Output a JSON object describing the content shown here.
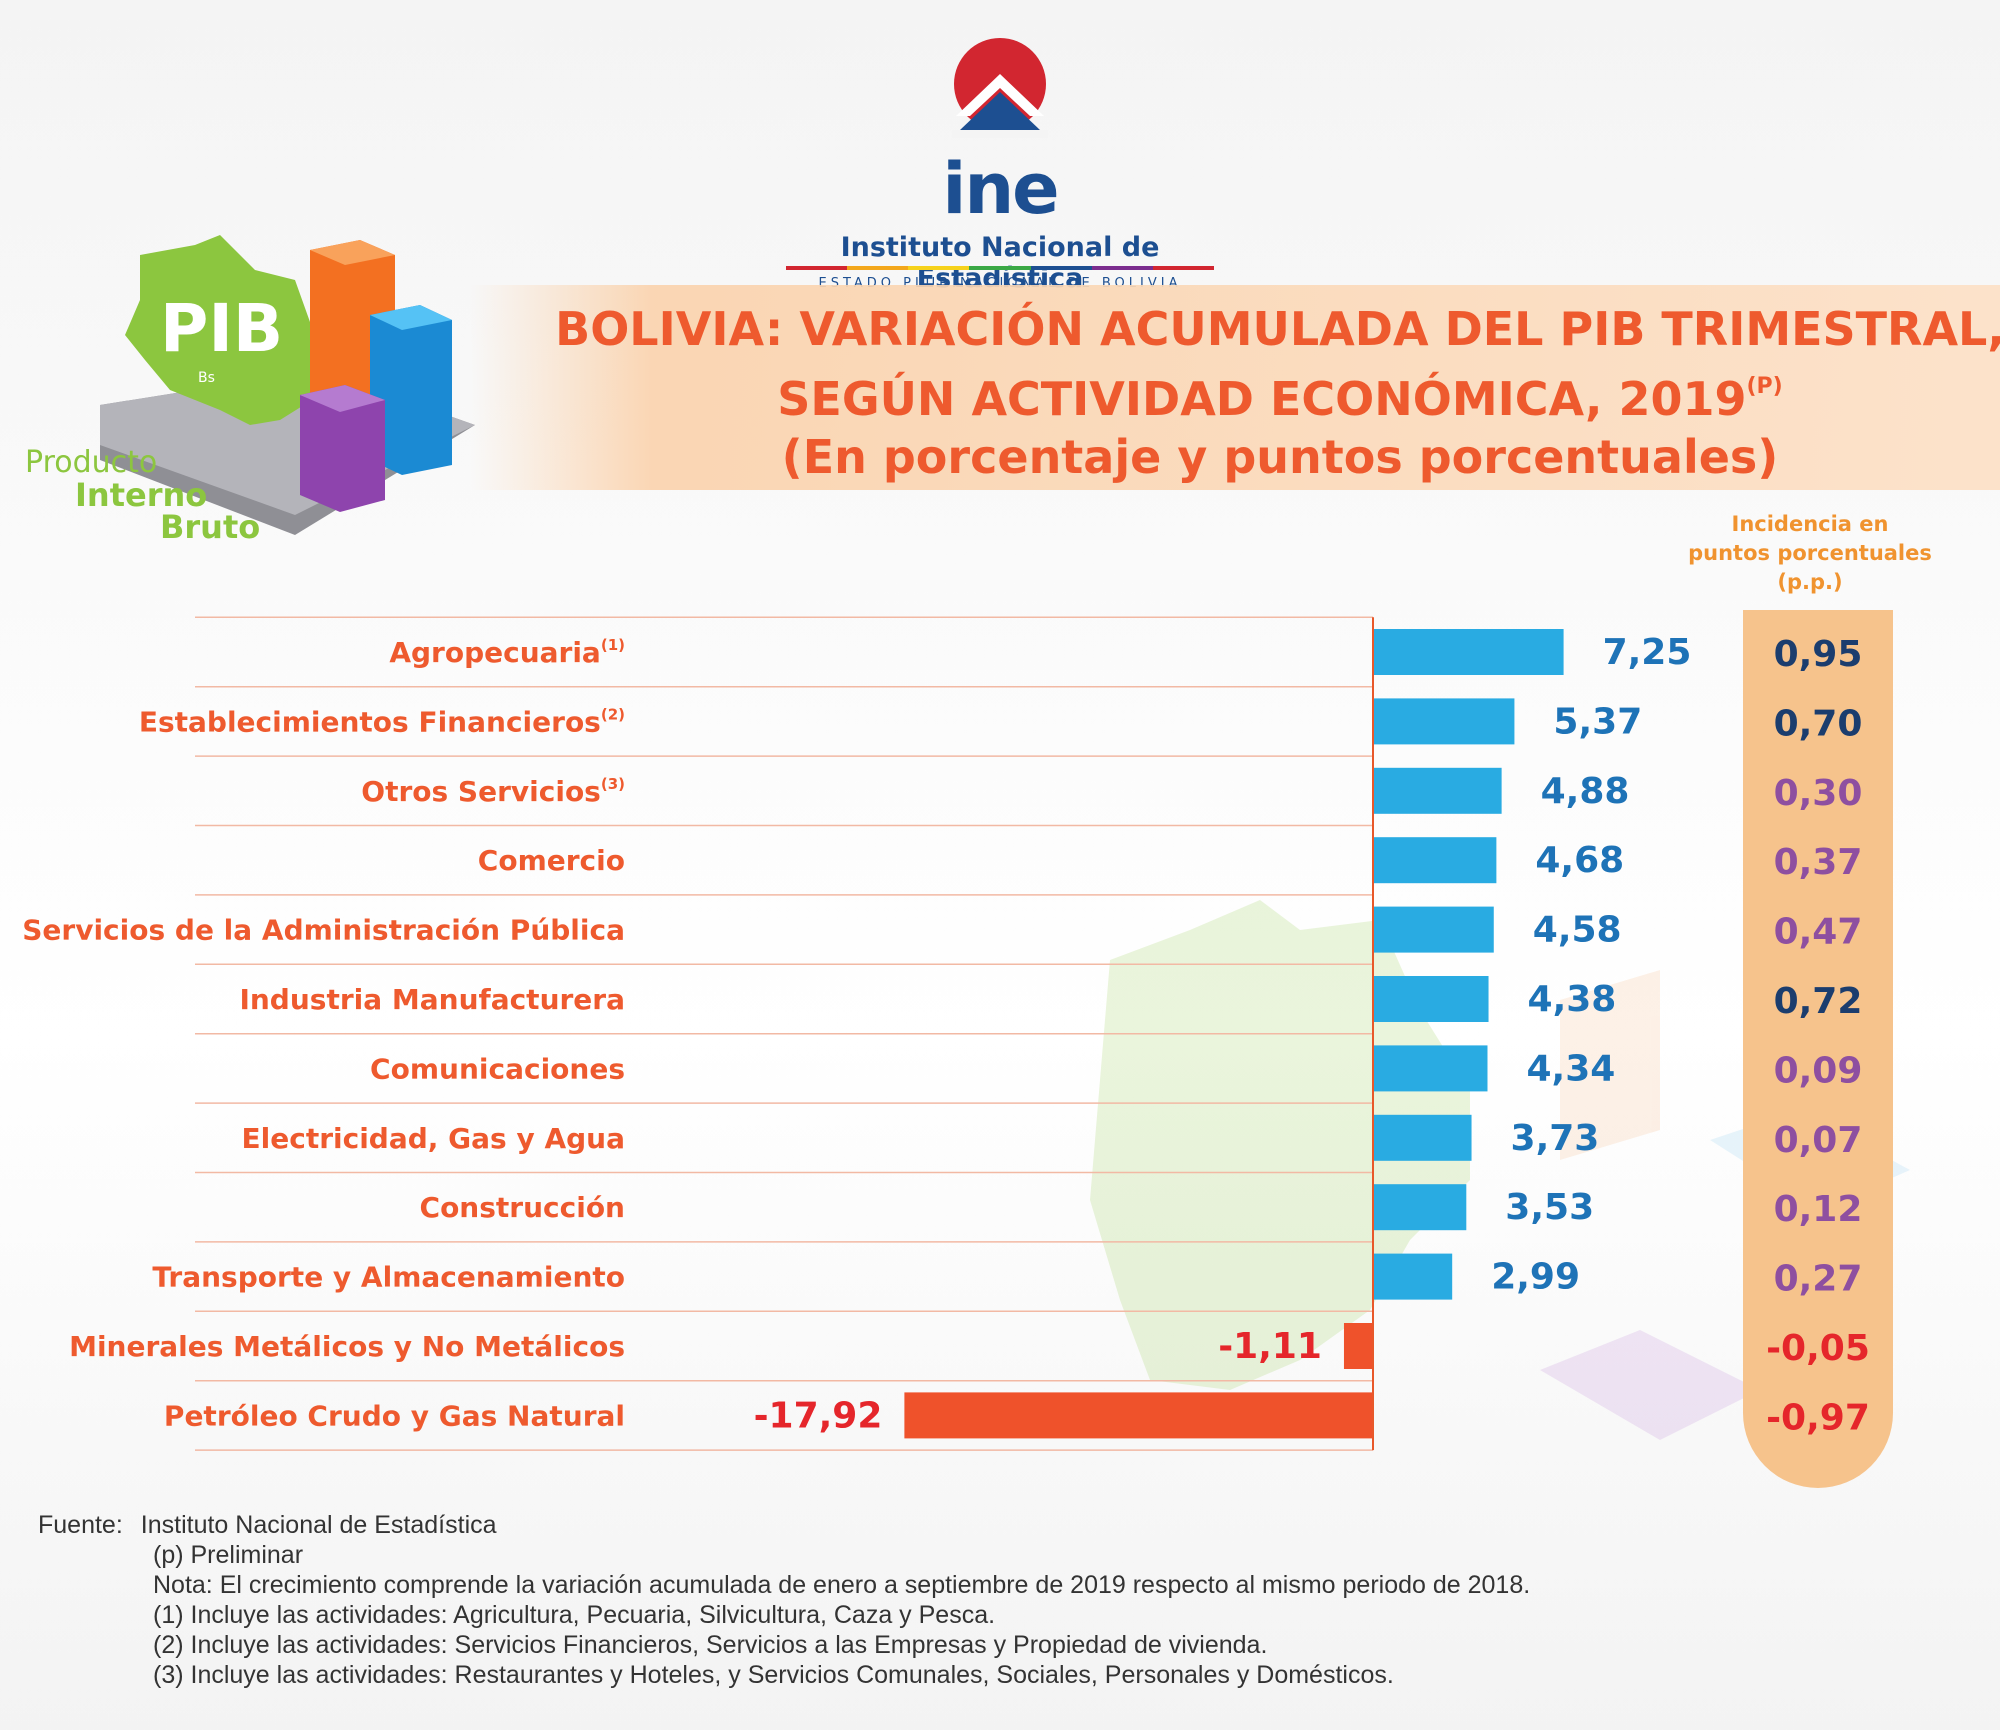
{
  "logo": {
    "name": "ine",
    "institution": "Instituto Nacional de Estadística",
    "subtitle": "ESTADO PLURINACIONAL DE BOLIVIA"
  },
  "pib_logo": {
    "big": "PIB",
    "currency": "Bs",
    "line1": "Producto",
    "line2": "Interno",
    "line3": "Bruto"
  },
  "title": {
    "line1": "BOLIVIA: VARIACIÓN ACUMULADA DEL PIB TRIMESTRAL,",
    "line2": "SEGÚN ACTIVIDAD ECONÓMICA, 2019",
    "line2_sup": "(P)",
    "line3": "(En porcentaje y puntos porcentuales)"
  },
  "incidence_header": {
    "line1": "Incidencia en",
    "line2": "puntos porcentuales",
    "line3": "(p.p.)"
  },
  "colors": {
    "positive_bar": "#29abe2",
    "negative_bar": "#ef522b",
    "label_orange": "#ee5a2e",
    "value_blue": "#1e73b7",
    "value_red": "#e5262b",
    "incidence_navy": "#1b3d6e",
    "incidence_purple": "#8e4fa0",
    "incidence_column": "#f6c38c"
  },
  "chart_data": {
    "type": "bar",
    "orientation": "horizontal",
    "categories": [
      "Agropecuaria",
      "Establecimientos Financieros",
      "Otros Servicios",
      "Comercio",
      "Servicios de la Administración Pública",
      "Industria Manufacturera",
      "Comunicaciones",
      "Electricidad, Gas y Agua",
      "Construcción",
      "Transporte y Almacenamiento",
      "Minerales Metálicos y No Metálicos",
      "Petróleo Crudo y Gas Natural"
    ],
    "category_notes": [
      "(1)",
      "(2)",
      "(3)",
      "",
      "",
      "",
      "",
      "",
      "",
      "",
      "",
      ""
    ],
    "values": [
      7.25,
      5.37,
      4.88,
      4.68,
      4.58,
      4.38,
      4.34,
      3.73,
      3.53,
      2.99,
      -1.11,
      -17.92
    ],
    "value_labels": [
      "7,25",
      "5,37",
      "4,88",
      "4,68",
      "4,58",
      "4,38",
      "4,34",
      "3,73",
      "3,53",
      "2,99",
      "-1,11",
      "-17,92"
    ],
    "incidence": [
      0.95,
      0.7,
      0.3,
      0.37,
      0.47,
      0.72,
      0.09,
      0.07,
      0.12,
      0.27,
      -0.05,
      -0.97
    ],
    "incidence_labels": [
      "0,95",
      "0,70",
      "0,30",
      "0,37",
      "0,47",
      "0,72",
      "0,09",
      "0,07",
      "0,12",
      "0,27",
      "-0,05",
      "-0,97"
    ],
    "incidence_color_roles": [
      "navy",
      "navy",
      "purple",
      "purple",
      "purple",
      "navy",
      "purple",
      "purple",
      "purple",
      "purple",
      "red",
      "red"
    ],
    "xlim": [
      -17.92,
      7.25
    ],
    "grid": true,
    "legend": "none"
  },
  "footer": {
    "source_label": "Fuente:",
    "source": "Instituto Nacional de Estadística",
    "preliminary": "(p) Preliminar",
    "note": "Nota: El crecimiento comprende la variación acumulada de enero a septiembre de 2019 respecto al mismo periodo de 2018.",
    "note1": "(1) Incluye las actividades: Agricultura, Pecuaria, Silvicultura, Caza y Pesca.",
    "note2": "(2) Incluye las actividades: Servicios Financieros, Servicios a las Empresas y Propiedad de vivienda.",
    "note3": "(3) Incluye las actividades: Restaurantes y Hoteles, y Servicios Comunales, Sociales, Personales y Domésticos."
  }
}
